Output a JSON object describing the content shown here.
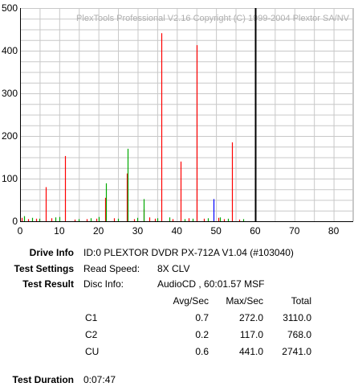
{
  "chart_data": {
    "type": "bar",
    "watermark": "PlexTools Professional V2.16 Copyright (C) 1999-2004 Plextor SA/NV",
    "xlim": [
      0,
      85
    ],
    "ylim": [
      0,
      500
    ],
    "x_ticks": [
      0,
      10,
      20,
      30,
      40,
      50,
      60,
      70,
      80
    ],
    "y_ticks": [
      0,
      100,
      200,
      300,
      400,
      500
    ],
    "grid": true,
    "end_marker_x": 60,
    "series": [
      {
        "color": "#ff0000",
        "x": [
          6.5,
          11.5,
          21.8,
          27.2,
          31.5,
          36,
          41,
          45,
          54,
          0.5,
          2,
          4,
          8,
          14,
          17,
          19.5,
          24,
          29,
          33,
          34.5,
          39,
          43,
          47,
          50.5,
          52,
          56
        ],
        "values": [
          80,
          153,
          55,
          112,
          28,
          441,
          140,
          413,
          185,
          8,
          5,
          6,
          7,
          4,
          5,
          6,
          7,
          5,
          9,
          6,
          5,
          7,
          6,
          8,
          5,
          4
        ]
      },
      {
        "color": "#00aa00",
        "x": [
          10,
          21.9,
          27.4,
          31.6,
          1,
          3,
          5,
          9,
          15,
          18,
          20,
          25,
          30,
          35,
          38,
          42,
          44,
          48,
          51,
          53,
          57
        ],
        "values": [
          10,
          89,
          170,
          52,
          12,
          8,
          6,
          9,
          5,
          7,
          10,
          6,
          8,
          7,
          9,
          5,
          6,
          7,
          9,
          6,
          5
        ]
      },
      {
        "color": "#0000ff",
        "x": [
          49.3
        ],
        "values": [
          52
        ]
      }
    ]
  },
  "info": {
    "drive_info_label": "Drive Info",
    "drive_info_value": "ID:0 PLEXTOR DVDR PX-712A V1.04 (#103040)",
    "test_settings_label": "Test Settings",
    "read_speed_label": "Read Speed:",
    "read_speed_value": "8X CLV",
    "test_result_label": "Test Result",
    "disc_info_label": "Disc Info:",
    "disc_info_value": "AudioCD , 60:01.57 MSF",
    "col_avg": "Avg/Sec",
    "col_max": "Max/Sec",
    "col_total": "Total",
    "rows": [
      {
        "name": "C1",
        "avg": "0.7",
        "max": "272.0",
        "total": "3110.0"
      },
      {
        "name": "C2",
        "avg": "0.2",
        "max": "117.0",
        "total": "768.0"
      },
      {
        "name": "CU",
        "avg": "0.6",
        "max": "441.0",
        "total": "2741.0"
      }
    ],
    "test_duration_label": "Test Duration",
    "test_duration_value": "0:07:47"
  }
}
